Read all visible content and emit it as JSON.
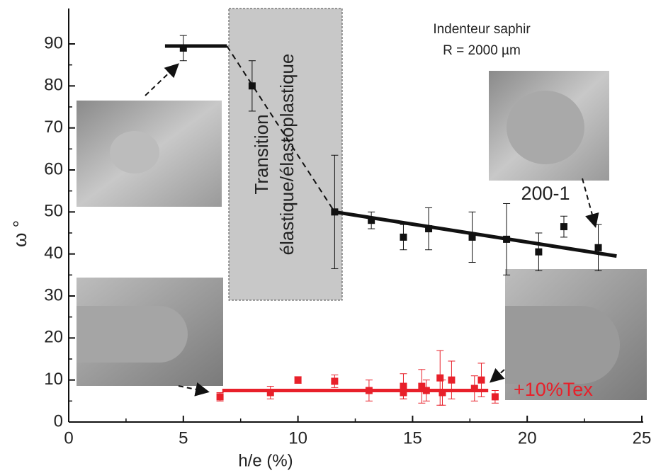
{
  "chart_data": {
    "type": "scatter",
    "x_label": "h/e (%)",
    "y_label": "ω °",
    "annotations": [
      "Indenteur saphir",
      "R = 2000 µm"
    ],
    "transition_label": [
      "Transition",
      "élastique/élastoplastique"
    ],
    "xlim": [
      0,
      25
    ],
    "xticks": [
      0,
      5,
      10,
      15,
      20,
      25
    ],
    "ylim": [
      0,
      90
    ],
    "yticks": [
      0,
      10,
      20,
      30,
      40,
      50,
      60,
      70,
      80,
      90
    ],
    "series": [
      {
        "name": "200-1",
        "color": "#111111",
        "x": [
          5,
          8,
          11.6,
          13.2,
          14.6,
          15.7,
          17.6,
          19.1,
          20.5,
          21.6,
          23.1
        ],
        "values": [
          89,
          80,
          50,
          48,
          44,
          46,
          44,
          43.5,
          40.5,
          46.5,
          41.5
        ],
        "errors": [
          3,
          6,
          13.5,
          2,
          3,
          5,
          6,
          8.5,
          4.5,
          2.5,
          5.5
        ],
        "fits": [
          {
            "style": "solid",
            "x": [
              4.2,
              6.9
            ],
            "values": [
              89.5,
              89.5
            ]
          },
          {
            "style": "dashed",
            "x": [
              6.9,
              11.6
            ],
            "values": [
              89.5,
              50
            ]
          },
          {
            "style": "solid",
            "x": [
              11.6,
              23.9
            ],
            "values": [
              50,
              39.5
            ]
          }
        ]
      },
      {
        "name": "+10%Tex",
        "color": "#e8202a",
        "x": [
          6.6,
          8.8,
          10,
          11.6,
          13.1,
          14.6,
          14.6,
          15.4,
          15.6,
          16.2,
          16.3,
          16.7,
          17.7,
          18,
          18.6
        ],
        "values": [
          6,
          7,
          10,
          9.7,
          7.5,
          7,
          8.5,
          8.5,
          7.5,
          10.5,
          7,
          10,
          8,
          10,
          6
        ],
        "errors": [
          1,
          1.5,
          0.8,
          1.5,
          2.5,
          1.5,
          3,
          4,
          2.5,
          6.5,
          3,
          4.5,
          3,
          4,
          1.5
        ],
        "fits": [
          {
            "style": "solid",
            "x": [
              6.7,
              18.3
            ],
            "values": [
              7.5,
              7.5
            ]
          }
        ]
      }
    ]
  }
}
